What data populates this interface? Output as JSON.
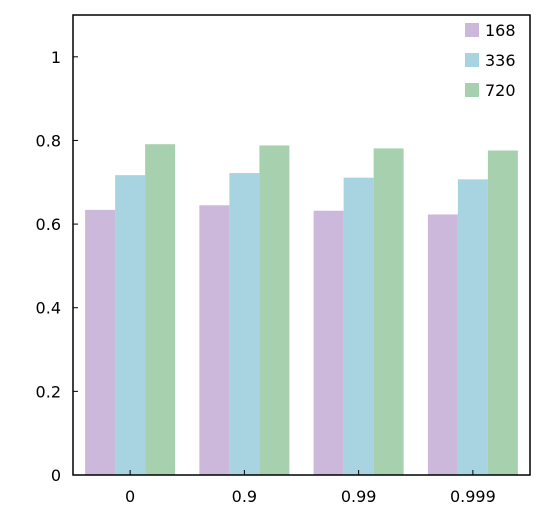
{
  "chart_data": {
    "type": "bar",
    "categories": [
      "0",
      "0.9",
      "0.99",
      "0.999"
    ],
    "series": [
      {
        "name": "168",
        "color": "#cbb8da",
        "values": [
          0.634,
          0.645,
          0.632,
          0.623
        ]
      },
      {
        "name": "336",
        "color": "#a8d3e0",
        "values": [
          0.717,
          0.722,
          0.711,
          0.707
        ]
      },
      {
        "name": "720",
        "color": "#a6d0ae",
        "values": [
          0.791,
          0.788,
          0.781,
          0.776
        ]
      }
    ],
    "yticks": [
      "0",
      "0.2",
      "0.4",
      "0.6",
      "0.8",
      "1"
    ],
    "ytick_values": [
      0,
      0.2,
      0.4,
      0.6,
      0.8,
      1.0
    ],
    "ylim": [
      0,
      1.1
    ],
    "title": "",
    "xlabel": "",
    "ylabel": "",
    "legend_position": "top-right",
    "grid": false
  }
}
